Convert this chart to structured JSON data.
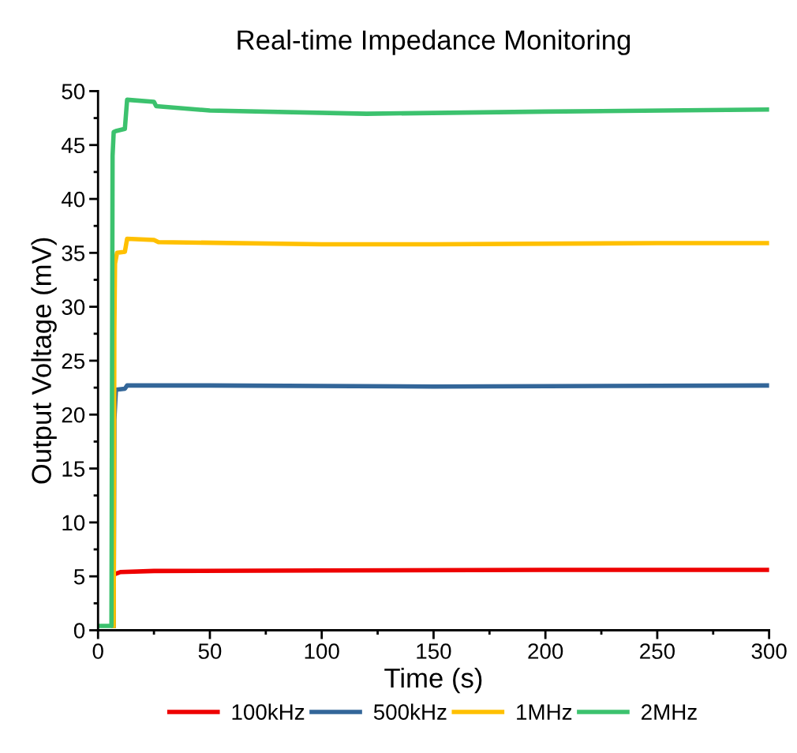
{
  "chart_data": {
    "type": "line",
    "title": "Real-time Impedance Monitoring",
    "xlabel": "Time (s)",
    "ylabel": "Output Voltage (mV)",
    "xlim": [
      0,
      300
    ],
    "xticks": [
      0,
      50,
      100,
      150,
      200,
      250,
      300
    ],
    "ylim": [
      0,
      50
    ],
    "yticks": [
      0,
      5,
      10,
      15,
      20,
      25,
      30,
      35,
      40,
      45,
      50
    ],
    "grid": false,
    "legend": "bottom",
    "marker": "none",
    "line_style": "solid",
    "series": [
      {
        "name": "100kHz",
        "color": "#ee0000",
        "x": [
          7.5,
          10,
          25,
          100,
          200,
          300
        ],
        "values": [
          5.2,
          5.4,
          5.5,
          5.55,
          5.6,
          5.6
        ]
      },
      {
        "name": "500kHz",
        "color": "#336699",
        "x": [
          7,
          7.3,
          8,
          12,
          13,
          50,
          150,
          300
        ],
        "values": [
          0.4,
          19.5,
          22.3,
          22.4,
          22.7,
          22.7,
          22.6,
          22.7
        ]
      },
      {
        "name": "1MHz",
        "color": "#ffc000",
        "x": [
          7,
          7.3,
          7.6,
          8.5,
          12,
          13,
          25,
          27,
          100,
          150,
          250,
          300
        ],
        "values": [
          0.4,
          27.7,
          34,
          35,
          35.1,
          36.3,
          36.2,
          36,
          35.8,
          35.8,
          35.9,
          35.9
        ]
      },
      {
        "name": "2MHz",
        "color": "#3cc26e",
        "x": [
          0,
          6,
          6.5,
          7,
          8,
          12,
          13,
          25,
          26,
          50,
          120,
          200,
          300
        ],
        "values": [
          0.4,
          0.4,
          44,
          46.2,
          46.3,
          46.5,
          49.2,
          49,
          48.6,
          48.2,
          47.9,
          48.1,
          48.3
        ]
      }
    ]
  }
}
